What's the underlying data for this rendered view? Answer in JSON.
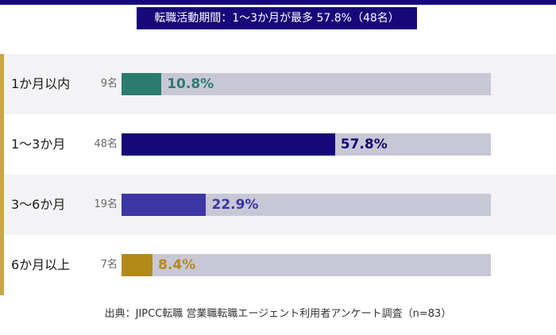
{
  "chart_data": {
    "type": "bar",
    "orientation": "horizontal",
    "title": "転職活動期間：1〜3か月が最多 57.8%（48名）",
    "categories": [
      "1か月以内",
      "1〜3か月",
      "3〜6か月",
      "6か月以上"
    ],
    "counts": [
      "9名",
      "48名",
      "19名",
      "7名"
    ],
    "values": [
      10.8,
      57.8,
      22.9,
      8.4
    ],
    "value_labels": [
      "10.8%",
      "57.8%",
      "22.9%",
      "8.4%"
    ],
    "xlim": [
      0,
      100
    ],
    "unit": "%",
    "bar_colors": [
      "#2a7d6e",
      "#16077a",
      "#3d36a6",
      "#b38a1a"
    ],
    "track_color": "#c8c7d5",
    "source": "出典：JIPCC転職 営業職転職エージェント利用者アンケート調査（n=83）"
  },
  "colors": {
    "header": "#16077a",
    "accent": "#c9a548"
  }
}
